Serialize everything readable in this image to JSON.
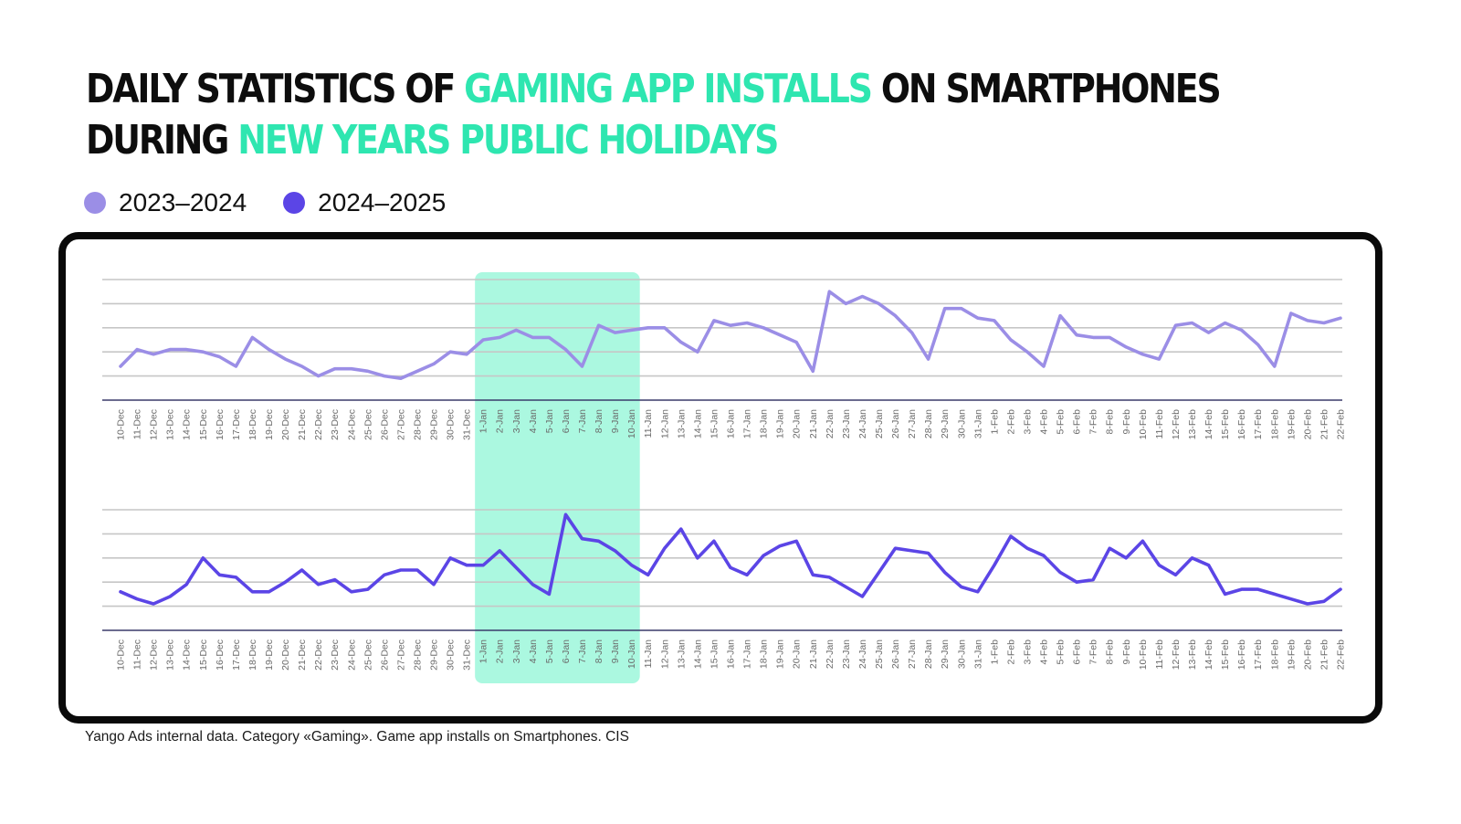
{
  "title": {
    "line1_a": "Daily statistics of ",
    "line1_b": "gaming app installs",
    "line1_c": " on smartphones",
    "line2_a": "during ",
    "line2_b": "New Years public holidays"
  },
  "legend": [
    {
      "label": "2023–2024",
      "color": "#9b8ee6"
    },
    {
      "label": "2024–2025",
      "color": "#5b45e6"
    }
  ],
  "footnote": "Yango Ads internal data. Category «Gaming». Game app installs on Smartphones. CIS",
  "colors": {
    "highlight": "#8ff5d6",
    "grid": "#c6c6c6",
    "axis": "#3a3a6a",
    "tick": "#6a6a6a"
  },
  "chart_data": [
    {
      "type": "line",
      "series": [
        {
          "name": "2023–2024",
          "color": "#9b8ee6",
          "values": [
            1.4,
            2.1,
            1.9,
            2.1,
            2.1,
            2.0,
            1.8,
            1.4,
            2.6,
            2.1,
            1.7,
            1.4,
            1.0,
            1.3,
            1.3,
            1.2,
            1.0,
            0.9,
            1.2,
            1.5,
            2.0,
            1.9,
            2.5,
            2.6,
            2.9,
            2.6,
            2.6,
            2.1,
            1.4,
            3.1,
            2.8,
            2.9,
            3.0,
            3.0,
            2.4,
            2.0,
            3.3,
            3.1,
            3.2,
            3.0,
            2.7,
            2.4,
            1.2,
            4.5,
            4.0,
            4.3,
            4.0,
            3.5,
            2.8,
            1.7,
            3.8,
            3.8,
            3.4,
            3.3,
            2.5,
            2.0,
            1.4,
            3.5,
            2.7,
            2.6,
            2.6,
            2.2,
            1.9,
            1.7,
            3.1,
            3.2,
            2.8,
            3.2,
            2.9,
            2.3,
            1.4,
            3.6,
            3.3,
            3.2,
            3.4
          ]
        }
      ],
      "highlight_range": [
        "1-Jan",
        "10-Jan"
      ],
      "ylim": [
        0,
        5
      ]
    },
    {
      "type": "line",
      "series": [
        {
          "name": "2024–2025",
          "color": "#5b45e6",
          "values": [
            1.6,
            1.3,
            1.1,
            1.4,
            1.9,
            3.0,
            2.3,
            2.2,
            1.6,
            1.6,
            2.0,
            2.5,
            1.9,
            2.1,
            1.6,
            1.7,
            2.3,
            2.5,
            2.5,
            1.9,
            3.0,
            2.7,
            2.7,
            3.3,
            2.6,
            1.9,
            1.5,
            4.8,
            3.8,
            3.7,
            3.3,
            2.7,
            2.3,
            3.4,
            4.2,
            3.0,
            3.7,
            2.6,
            2.3,
            3.1,
            3.5,
            3.7,
            2.3,
            2.2,
            1.8,
            1.4,
            2.4,
            3.4,
            3.3,
            3.2,
            2.4,
            1.8,
            1.6,
            2.7,
            3.9,
            3.4,
            3.1,
            2.4,
            2.0,
            2.1,
            3.4,
            3.0,
            3.7,
            2.7,
            2.3,
            3.0,
            2.7,
            1.5,
            1.7,
            1.7,
            1.5,
            1.3,
            1.1,
            1.2,
            1.7
          ]
        }
      ],
      "highlight_range": [
        "1-Jan",
        "10-Jan"
      ],
      "ylim": [
        0,
        5
      ]
    }
  ],
  "x_labels": [
    "10-Dec",
    "11-Dec",
    "12-Dec",
    "13-Dec",
    "14-Dec",
    "15-Dec",
    "16-Dec",
    "17-Dec",
    "18-Dec",
    "19-Dec",
    "20-Dec",
    "21-Dec",
    "22-Dec",
    "23-Dec",
    "24-Dec",
    "25-Dec",
    "26-Dec",
    "27-Dec",
    "28-Dec",
    "29-Dec",
    "30-Dec",
    "31-Dec",
    "1-Jan",
    "2-Jan",
    "3-Jan",
    "4-Jan",
    "5-Jan",
    "6-Jan",
    "7-Jan",
    "8-Jan",
    "9-Jan",
    "10-Jan",
    "11-Jan",
    "12-Jan",
    "13-Jan",
    "14-Jan",
    "15-Jan",
    "16-Jan",
    "17-Jan",
    "18-Jan",
    "19-Jan",
    "20-Jan",
    "21-Jan",
    "22-Jan",
    "23-Jan",
    "24-Jan",
    "25-Jan",
    "26-Jan",
    "27-Jan",
    "28-Jan",
    "29-Jan",
    "30-Jan",
    "31-Jan",
    "1-Feb",
    "2-Feb",
    "3-Feb",
    "4-Feb",
    "5-Feb",
    "6-Feb",
    "7-Feb",
    "8-Feb",
    "9-Feb",
    "10-Feb",
    "11-Feb",
    "12-Feb",
    "13-Feb",
    "14-Feb",
    "15-Feb",
    "16-Feb",
    "17-Feb",
    "18-Feb",
    "19-Feb",
    "20-Feb",
    "21-Feb",
    "22-Feb"
  ]
}
